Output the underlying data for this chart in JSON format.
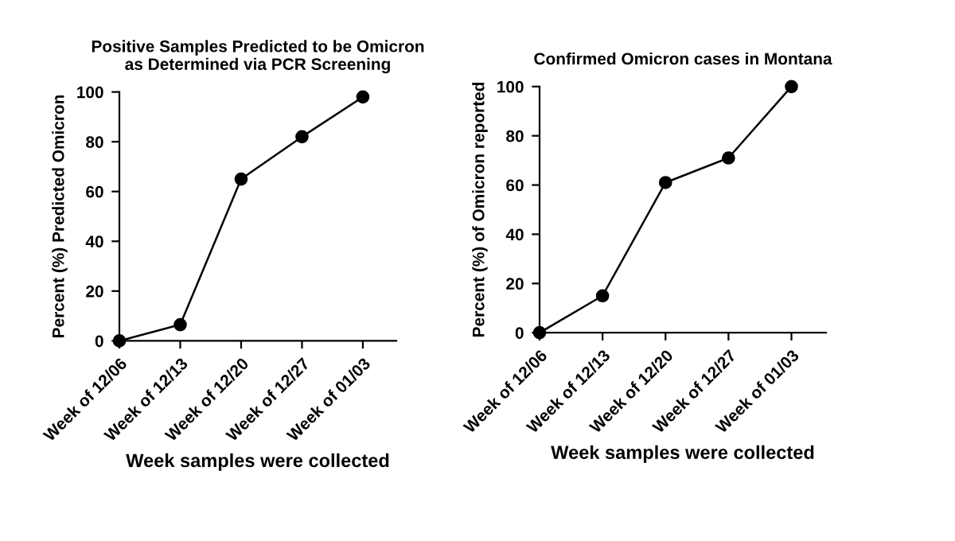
{
  "chart_data": [
    {
      "type": "line",
      "title": "Positive Samples Predicted to be Omicron\nas Determined via PCR Screening",
      "xlabel": "Week samples were collected",
      "ylabel": "Percent (%) Predicted Omicron",
      "categories": [
        "Week of 12/06",
        "Week of 12/13",
        "Week of 12/20",
        "Week of 12/27",
        "Week of 01/03"
      ],
      "series": [
        {
          "color": "#000000",
          "values": [
            0,
            6.5,
            65,
            82,
            98
          ]
        }
      ],
      "ylim": [
        0,
        100
      ],
      "yticks": [
        0,
        20,
        40,
        60,
        80,
        100
      ],
      "grid": false,
      "legend": false,
      "marker": "circle",
      "line_style": "solid"
    },
    {
      "type": "line",
      "title": "Confirmed Omicron cases in Montana",
      "xlabel": "Week samples were collected",
      "ylabel": "Percent (%) of Omicron reported",
      "categories": [
        "Week of 12/06",
        "Week of 12/13",
        "Week of 12/20",
        "Week of 12/27",
        "Week of 01/03"
      ],
      "series": [
        {
          "color": "#000000",
          "values": [
            0,
            15,
            61,
            71,
            100
          ]
        }
      ],
      "ylim": [
        0,
        100
      ],
      "yticks": [
        0,
        20,
        40,
        60,
        80,
        100
      ],
      "grid": false,
      "legend": false,
      "marker": "circle",
      "line_style": "solid"
    }
  ]
}
